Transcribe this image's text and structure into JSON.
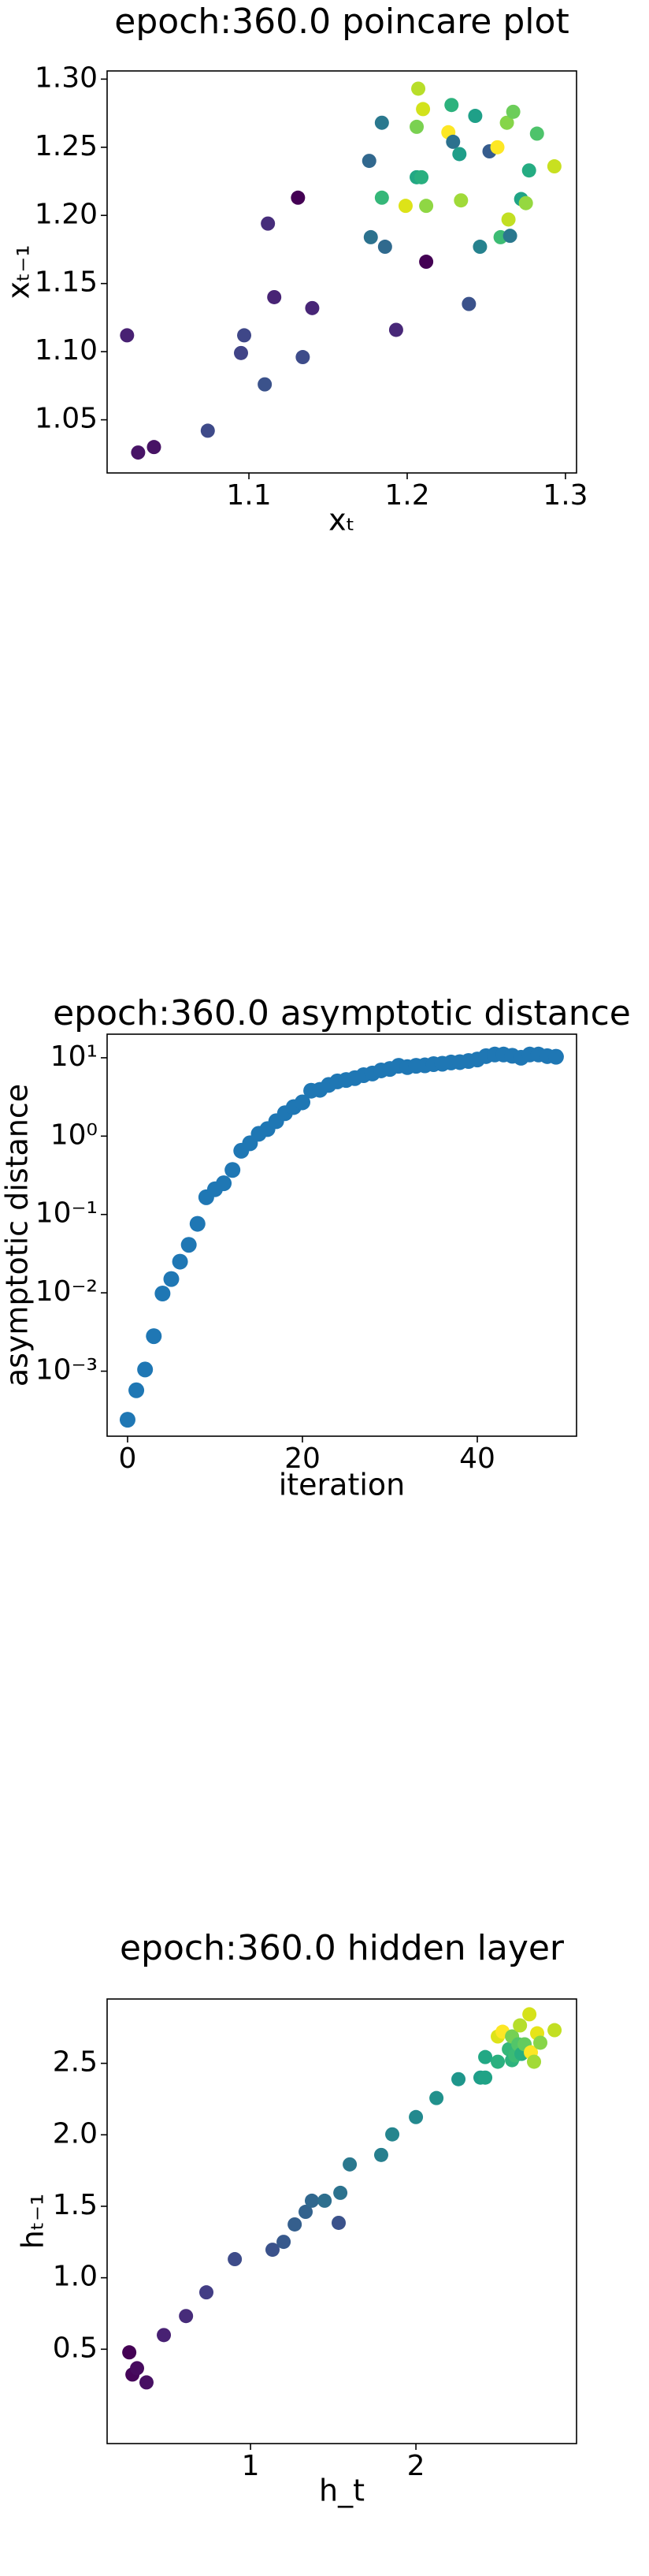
{
  "chart_data": [
    {
      "type": "scatter",
      "title": "epoch:360.0 poincare plot",
      "xlabel": "xₜ",
      "ylabel": "xₜ₋₁",
      "x": [
        1.023,
        1.03,
        1.04,
        1.074,
        1.097,
        1.095,
        1.11,
        1.112,
        1.116,
        1.131,
        1.134,
        1.14,
        1.176,
        1.177,
        1.184,
        1.186,
        1.193,
        1.184,
        1.199,
        1.207,
        1.206,
        1.21,
        1.206,
        1.209,
        1.212,
        1.212,
        1.226,
        1.228,
        1.229,
        1.233,
        1.234,
        1.239,
        1.243,
        1.246,
        1.252,
        1.257,
        1.263,
        1.267,
        1.259,
        1.265,
        1.264,
        1.272,
        1.275,
        1.277,
        1.282,
        1.293
      ],
      "y": [
        1.112,
        1.026,
        1.03,
        1.042,
        1.112,
        1.099,
        1.076,
        1.194,
        1.14,
        1.213,
        1.096,
        1.132,
        1.24,
        1.184,
        1.268,
        1.177,
        1.116,
        1.213,
        1.207,
        1.293,
        1.265,
        1.278,
        1.228,
        1.228,
        1.207,
        1.166,
        1.261,
        1.281,
        1.254,
        1.245,
        1.211,
        1.135,
        1.273,
        1.177,
        1.247,
        1.25,
        1.268,
        1.276,
        1.184,
        1.185,
        1.197,
        1.212,
        1.209,
        1.233,
        1.26,
        1.236
      ],
      "colors": [
        "#482173",
        "#481467",
        "#471365",
        "#3e4a89",
        "#3f4788",
        "#414487",
        "#3b528b",
        "#472d7b",
        "#482475",
        "#440154",
        "#3e4c8a",
        "#482677",
        "#31688e",
        "#2c728e",
        "#2a788e",
        "#306a8e",
        "#482878",
        "#35b779",
        "#dde318",
        "#b8de29",
        "#7ad151",
        "#d2e21b",
        "#22a884",
        "#29af7f",
        "#8fd744",
        "#440154",
        "#fde725",
        "#2db27d",
        "#2c718e",
        "#1f9e89",
        "#a0da39",
        "#3b528b",
        "#1fa088",
        "#26828e",
        "#365c8d",
        "#fde725",
        "#86d549",
        "#6ccd5a",
        "#3dbc74",
        "#2a788e",
        "#c2df23",
        "#20a486",
        "#95d840",
        "#25ac82",
        "#4ec36b",
        "#c8e020"
      ],
      "xlim": [
        1.0104,
        1.307
      ],
      "ylim": [
        1.011,
        1.306
      ],
      "xticks": [
        1.1,
        1.2,
        1.3
      ],
      "yticks": [
        1.05,
        {
          "value": 1.1,
          "label": "1.10"
        },
        1.15,
        {
          "value": 1.2,
          "label": "1.20"
        },
        1.25,
        {
          "value": 1.3,
          "label": "1.30"
        }
      ]
    },
    {
      "type": "scatter",
      "title": "epoch:360.0 asymptotic distance",
      "xlabel": "iteration",
      "ylabel": "asymptotic distance",
      "yscale": "log",
      "color": "#1f77b4",
      "x": [
        0,
        1,
        2,
        3,
        4,
        5,
        6,
        7,
        8,
        9,
        10,
        11,
        12,
        13,
        14,
        15,
        16,
        17,
        18,
        19,
        20,
        21,
        22,
        23,
        24,
        25,
        26,
        27,
        28,
        29,
        30,
        31,
        32,
        33,
        34,
        35,
        36,
        37,
        38,
        39,
        40,
        41,
        42,
        43,
        44,
        45,
        46,
        47,
        48,
        49
      ],
      "y": [
        0.00024,
        0.00057,
        0.00105,
        0.0028,
        0.0098,
        0.015,
        0.025,
        0.041,
        0.076,
        0.166,
        0.21,
        0.25,
        0.37,
        0.65,
        0.81,
        1.07,
        1.23,
        1.55,
        1.96,
        2.35,
        2.7,
        3.8,
        3.9,
        4.5,
        5.0,
        5.2,
        5.5,
        6.0,
        6.3,
        6.9,
        7.2,
        7.9,
        7.6,
        7.9,
        8.0,
        8.3,
        8.4,
        8.7,
        8.8,
        9.1,
        9.5,
        10.5,
        11,
        11,
        10.6,
        10,
        11,
        11,
        10.5,
        10.3
      ],
      "xlim": [
        -2.34,
        51.35
      ],
      "ylim": [
        0.000148,
        20
      ],
      "xticks": [
        0,
        20,
        40
      ],
      "yticks": [
        {
          "value": 0.001,
          "label": "10⁻³"
        },
        {
          "value": 0.01,
          "label": "10⁻²"
        },
        {
          "value": 0.1,
          "label": "10⁻¹"
        },
        {
          "value": 1,
          "label": "10⁰"
        },
        {
          "value": 10,
          "label": "10¹"
        }
      ]
    },
    {
      "type": "scatter",
      "title": "epoch:360.0 hidden layer",
      "xlabel": "h_t",
      "ylabel": "hₜ₋₁",
      "x": [
        0.267,
        0.286,
        0.314,
        0.371,
        0.476,
        0.61,
        0.733,
        0.905,
        1.133,
        1.2,
        1.267,
        1.333,
        1.371,
        1.448,
        1.533,
        1.543,
        1.6,
        1.79,
        1.857,
        2.0,
        2.124,
        2.257,
        2.39,
        2.419,
        2.419,
        2.495,
        2.495,
        2.524,
        2.562,
        2.581,
        2.581,
        2.6,
        2.619,
        2.629,
        2.638,
        2.657,
        2.686,
        2.695,
        2.714,
        2.733,
        2.752,
        2.838
      ],
      "y": [
        0.478,
        0.323,
        0.367,
        0.268,
        0.599,
        0.732,
        0.898,
        1.13,
        1.196,
        1.251,
        1.373,
        1.461,
        1.539,
        1.539,
        1.384,
        1.594,
        1.793,
        1.859,
        2.003,
        2.124,
        2.257,
        2.389,
        2.4,
        2.4,
        2.544,
        2.511,
        2.688,
        2.721,
        2.599,
        2.688,
        2.522,
        2.555,
        2.633,
        2.765,
        2.566,
        2.633,
        2.843,
        2.577,
        2.511,
        2.71,
        2.644,
        2.732
      ],
      "colors": [
        "#440154",
        "#450559",
        "#460b5e",
        "#471063",
        "#482173",
        "#472c7a",
        "#433e85",
        "#3e4c8a",
        "#3b528b",
        "#38598c",
        "#355f8d",
        "#33638d",
        "#31688e",
        "#2e6f8e",
        "#3b528b",
        "#2c728e",
        "#2a788e",
        "#277f8e",
        "#25858e",
        "#23898e",
        "#21918c",
        "#1f968b",
        "#1f9e89",
        "#20a386",
        "#22a884",
        "#2ab07f",
        "#dde318",
        "#fde725",
        "#35b779",
        "#75d054",
        "#2db27d",
        "#3bbb75",
        "#52c569",
        "#b5de2b",
        "#29af7f",
        "#63cb5f",
        "#d5e21a",
        "#fde725",
        "#a2da37",
        "#e5e419",
        "#87d549",
        "#c2df23"
      ],
      "xlim": [
        0.133,
        2.971
      ],
      "ylim": [
        -0.16,
        2.95
      ],
      "xticks": [
        1,
        2
      ],
      "yticks": [
        0.5,
        {
          "value": 1,
          "label": "1.0"
        },
        1.5,
        {
          "value": 2,
          "label": "2.0"
        },
        2.5
      ]
    }
  ]
}
